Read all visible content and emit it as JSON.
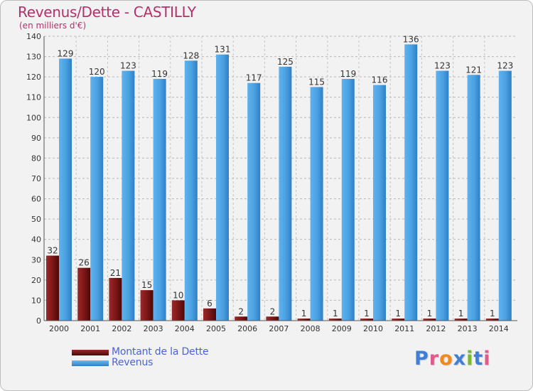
{
  "header": {
    "title": "Revenus/Dette - CASTILLY",
    "subtitle": "(en milliers d'€)"
  },
  "legend": {
    "items": [
      {
        "label": "Montant de la Dette",
        "color": "#7a1515"
      },
      {
        "label": "Revenus",
        "color": "#4aa0e0"
      }
    ]
  },
  "logo": {
    "text": "Proxiti",
    "letter_colors": [
      "#3f7fd6",
      "#e05b8c",
      "#f08a1c",
      "#3f7fd6",
      "#78b832",
      "#3f7fd6",
      "#e05b8c"
    ]
  },
  "chart_data": {
    "type": "bar",
    "categories": [
      "2000",
      "2001",
      "2002",
      "2003",
      "2004",
      "2005",
      "2006",
      "2007",
      "2008",
      "2009",
      "2010",
      "2011",
      "2012",
      "2013",
      "2014"
    ],
    "series": [
      {
        "name": "Montant de la Dette",
        "values": [
          32,
          26,
          21,
          15,
          10,
          6,
          2,
          2,
          1,
          1,
          1,
          1,
          1,
          1,
          1
        ],
        "color": "#7a1515"
      },
      {
        "name": "Revenus",
        "values": [
          129,
          120,
          123,
          119,
          128,
          131,
          117,
          125,
          115,
          119,
          116,
          136,
          123,
          121,
          123
        ],
        "color": "#4aa0e0"
      }
    ],
    "title": "Revenus/Dette - CASTILLY",
    "ylabel": "(en milliers d'€)",
    "ylim": [
      0,
      140
    ],
    "yticks": [
      0,
      10,
      20,
      30,
      40,
      50,
      60,
      70,
      80,
      90,
      100,
      110,
      120,
      130,
      140
    ],
    "grid": true,
    "legend_position": "bottom-left"
  }
}
